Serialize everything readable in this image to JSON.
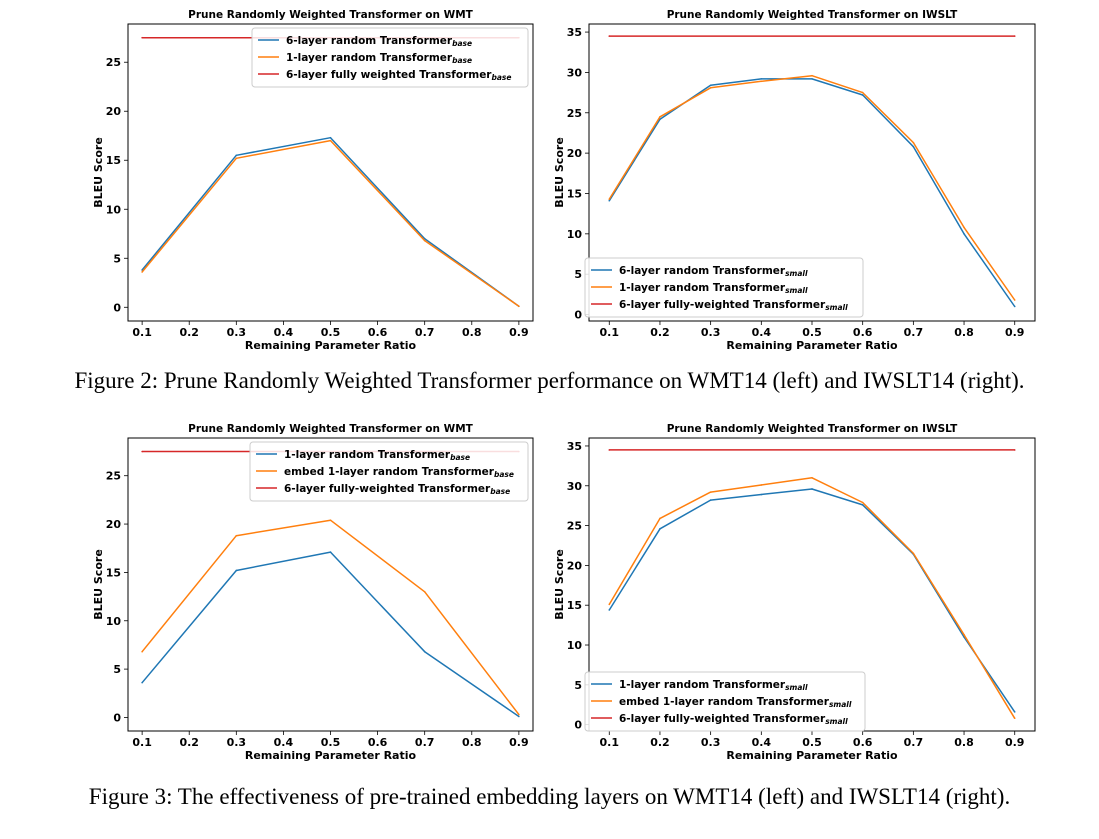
{
  "captions": {
    "figure2": "Figure 2: Prune Randomly Weighted Transformer performance on WMT14 (left) and IWSLT14 (right).",
    "figure3": "Figure 3: The effectiveness of pre-trained embedding layers on WMT14 (left) and IWSLT14 (right)."
  },
  "chart_data": [
    {
      "type": "line",
      "title": "Prune Randomly Weighted Transformer on WMT",
      "xlabel": "Remaining Parameter Ratio",
      "ylabel": "BLEU Score",
      "xlim": [
        0.07,
        0.93
      ],
      "ylim": [
        -1.4,
        28.9
      ],
      "xticks": [
        0.1,
        0.2,
        0.3,
        0.4,
        0.5,
        0.6,
        0.7,
        0.8,
        0.9
      ],
      "yticks": [
        0,
        5,
        10,
        15,
        20,
        25
      ],
      "legend_loc": "top-right",
      "series": [
        {
          "name": "6-layer random Transformer",
          "sub": "base",
          "color": "#1f77b4",
          "x": [
            0.1,
            0.3,
            0.5,
            0.7,
            0.9
          ],
          "values": [
            3.8,
            15.5,
            17.3,
            7.0,
            0.1
          ]
        },
        {
          "name": "1-layer random Transformer",
          "sub": "base",
          "color": "#ff7f0e",
          "x": [
            0.1,
            0.3,
            0.5,
            0.7,
            0.9
          ],
          "values": [
            3.6,
            15.2,
            17.0,
            6.8,
            0.1
          ]
        },
        {
          "name": "6-layer fully weighted Transformer",
          "sub": "base",
          "color": "#d62728",
          "x": [
            0.1,
            0.9
          ],
          "values": [
            27.5,
            27.5
          ]
        }
      ]
    },
    {
      "type": "line",
      "title": "Prune Randomly Weighted Transformer on IWSLT",
      "xlabel": "Remaining Parameter Ratio",
      "ylabel": "BLEU Score",
      "xlim": [
        0.06,
        0.94
      ],
      "ylim": [
        -0.8,
        36.0
      ],
      "xticks": [
        0.1,
        0.2,
        0.3,
        0.4,
        0.5,
        0.6,
        0.7,
        0.8,
        0.9
      ],
      "yticks": [
        0,
        5,
        10,
        15,
        20,
        25,
        30,
        35
      ],
      "legend_loc": "lower-left",
      "series": [
        {
          "name": "6-layer random Transformer",
          "sub": "small",
          "color": "#1f77b4",
          "x": [
            0.1,
            0.2,
            0.3,
            0.4,
            0.5,
            0.6,
            0.7,
            0.8,
            0.9
          ],
          "values": [
            14.1,
            24.2,
            28.4,
            29.2,
            29.2,
            27.2,
            20.8,
            10.0,
            1.0
          ]
        },
        {
          "name": "1-layer random Transformer",
          "sub": "small",
          "color": "#ff7f0e",
          "x": [
            0.1,
            0.2,
            0.3,
            0.4,
            0.5,
            0.6,
            0.7,
            0.8,
            0.9
          ],
          "values": [
            14.3,
            24.5,
            28.1,
            28.9,
            29.6,
            27.5,
            21.3,
            10.8,
            1.8
          ]
        },
        {
          "name": "6-layer fully-weighted Transformer",
          "sub": "small",
          "color": "#d62728",
          "x": [
            0.1,
            0.9
          ],
          "values": [
            34.5,
            34.5
          ]
        }
      ]
    },
    {
      "type": "line",
      "title": "Prune Randomly Weighted Transformer on WMT",
      "xlabel": "Remaining Parameter Ratio",
      "ylabel": "BLEU Score",
      "xlim": [
        0.07,
        0.93
      ],
      "ylim": [
        -1.4,
        28.9
      ],
      "xticks": [
        0.1,
        0.2,
        0.3,
        0.4,
        0.5,
        0.6,
        0.7,
        0.8,
        0.9
      ],
      "yticks": [
        0,
        5,
        10,
        15,
        20,
        25
      ],
      "legend_loc": "top-right",
      "series": [
        {
          "name": "1-layer random Transformer",
          "sub": "base",
          "color": "#1f77b4",
          "x": [
            0.1,
            0.3,
            0.5,
            0.7,
            0.9
          ],
          "values": [
            3.6,
            15.2,
            17.1,
            6.8,
            0.1
          ]
        },
        {
          "name": "embed 1-layer random Transformer",
          "sub": "base",
          "color": "#ff7f0e",
          "x": [
            0.1,
            0.3,
            0.5,
            0.7,
            0.9
          ],
          "values": [
            6.8,
            18.8,
            20.4,
            13.0,
            0.3
          ]
        },
        {
          "name": "6-layer fully-weighted Transformer",
          "sub": "base",
          "color": "#d62728",
          "x": [
            0.1,
            0.9
          ],
          "values": [
            27.5,
            27.5
          ]
        }
      ]
    },
    {
      "type": "line",
      "title": "Prune Randomly Weighted Transformer on IWSLT",
      "xlabel": "Remaining Parameter Ratio",
      "ylabel": "BLEU Score",
      "xlim": [
        0.06,
        0.94
      ],
      "ylim": [
        -0.8,
        36.0
      ],
      "xticks": [
        0.1,
        0.2,
        0.3,
        0.4,
        0.5,
        0.6,
        0.7,
        0.8,
        0.9
      ],
      "yticks": [
        0,
        5,
        10,
        15,
        20,
        25,
        30,
        35
      ],
      "legend_loc": "lower-left",
      "series": [
        {
          "name": "1-layer random Transformer",
          "sub": "small",
          "color": "#1f77b4",
          "x": [
            0.1,
            0.2,
            0.3,
            0.4,
            0.5,
            0.6,
            0.7,
            0.8,
            0.9
          ],
          "values": [
            14.4,
            24.6,
            28.2,
            28.9,
            29.6,
            27.6,
            21.4,
            11.0,
            1.6
          ]
        },
        {
          "name": "embed 1-layer random Transformer",
          "sub": "small",
          "color": "#ff7f0e",
          "x": [
            0.1,
            0.2,
            0.3,
            0.4,
            0.5,
            0.6,
            0.7,
            0.8,
            0.9
          ],
          "values": [
            15.1,
            25.9,
            29.2,
            30.1,
            31.0,
            27.9,
            21.5,
            11.3,
            0.8
          ]
        },
        {
          "name": "6-layer fully-weighted Transformer",
          "sub": "small",
          "color": "#d62728",
          "x": [
            0.1,
            0.9
          ],
          "values": [
            34.5,
            34.5
          ]
        }
      ]
    }
  ]
}
